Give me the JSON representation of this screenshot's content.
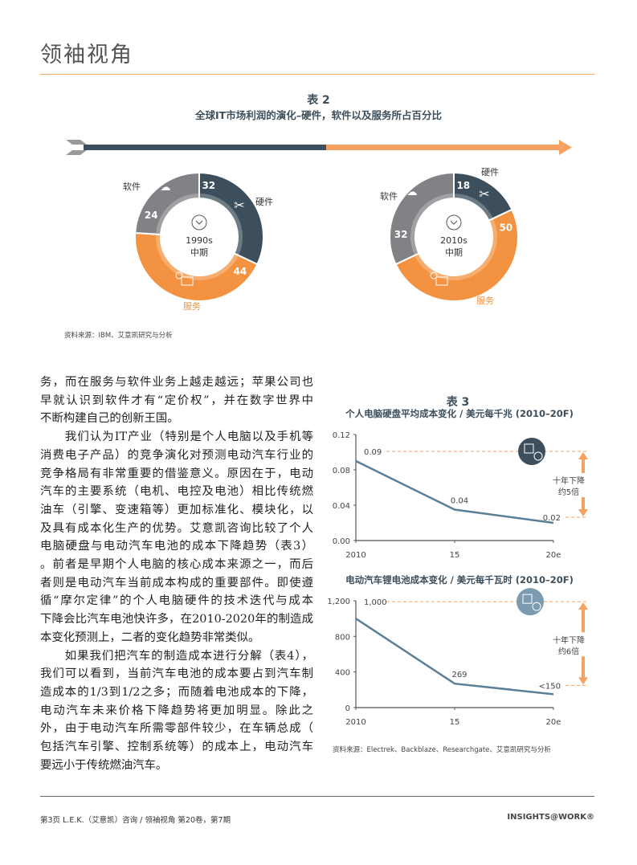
{
  "header": {
    "title": "领袖视角"
  },
  "figure2": {
    "number": "表 2",
    "title": "全球IT市场利润的演化–硬件，软件以及服务所占百分比",
    "labels": {
      "hardware": "硬件",
      "software": "软件",
      "service": "服务"
    },
    "source": "资料来源：IBM、艾意凯研究与分析",
    "colors": {
      "hardware": "#3d4f5c",
      "service": "#f39240",
      "software": "#808285"
    },
    "donuts": [
      {
        "period": "1990s",
        "period_sub": "中期",
        "hardware": 32,
        "service": 44,
        "software": 24
      },
      {
        "period": "2010s",
        "period_sub": "中期",
        "hardware": 18,
        "service": 50,
        "software": 32
      }
    ]
  },
  "body": {
    "lines": [
      "务，而在服务与软件业务上越走越远；苹果公司也",
      "早就认识到软件才有“定价权”，并在数字世界中",
      "不断构建自己的创新王国。",
      "　　我们认为IT产业（特别是个人电脑以及手机等",
      "消费电子产品）的竞争演化对预测电动汽车行业的",
      "竞争格局有非常重要的借鉴意义。原因在于，电动",
      "汽车的主要系统（电机、电控及电池）相比传统燃",
      "油车（引擎、变速箱等）更加标准化、模块化，以",
      "及具有成本化生产的优势。艾意凯咨询比较了个人",
      "电脑硬盘与电动汽车电池的成本下降趋势（表3）",
      "。前者是早期个人电脑的核心成本来源之一，而后",
      "者则是电动汽车当前成本构成的重要部件。即使遵",
      "循“摩尔定律”的个人电脑硬件的技术迭代与成本",
      "下降会比汽车电池快许多，在2010-2020年的制造成",
      "本变化预测上，二者的变化趋势非常类似。",
      "　　如果我们把汽车的制造成本进行分解（表4），",
      "我们可以看到，当前汽车电池的成本要占到汽车制",
      "造成本的1/3到1/2之多；而随着电池成本的下降，",
      "电动汽车未来价格下降趋势将更加明显。除此之",
      "外，由于电动汽车所需零部件较少，在车辆总成（",
      "包括汽车引擎、控制系统等）的成本上，电动汽车",
      "要远小于传统燃油汽车。"
    ]
  },
  "figure3": {
    "number": "表 3",
    "source": "资料来源：Electrek、Backblaze、Researchgate、艾意凯研究与分析"
  },
  "chart_data": [
    {
      "type": "line",
      "title": "个人电脑硬盘平均成本变化 / 美元每千兆 (2010–20F)",
      "categories": [
        "2010",
        "15",
        "20e"
      ],
      "values": [
        0.09,
        0.035,
        0.02
      ],
      "data_labels": [
        "0.09",
        "0.04",
        "0.02"
      ],
      "yticks": [
        "0.12",
        "0.08",
        "0.04",
        "0.00"
      ],
      "ylim": [
        0,
        0.12
      ],
      "annotation": [
        "十年下降",
        "约5倍"
      ],
      "line_color": "#5a7f96",
      "icon": "hard-drive-dollar-icon"
    },
    {
      "type": "line",
      "title": "电动汽车锂电池成本变化 / 美元每千瓦时 (2010–20F)",
      "categories": [
        "2010",
        "15",
        "20e"
      ],
      "values": [
        1000,
        269,
        150
      ],
      "data_labels": [
        "1,000",
        "269",
        "<150"
      ],
      "yticks": [
        "1,200",
        "800",
        "400",
        "0"
      ],
      "ylim": [
        0,
        1200
      ],
      "annotation": [
        "十年下降",
        "约6倍"
      ],
      "line_color": "#5a7f96",
      "icon": "battery-dollar-icon"
    }
  ],
  "footer": {
    "text": "第3页   L.E.K.（艾意凯）咨询 / 领袖视角   第20卷，第7期",
    "brand": "INSIGHTS@WORK®"
  }
}
